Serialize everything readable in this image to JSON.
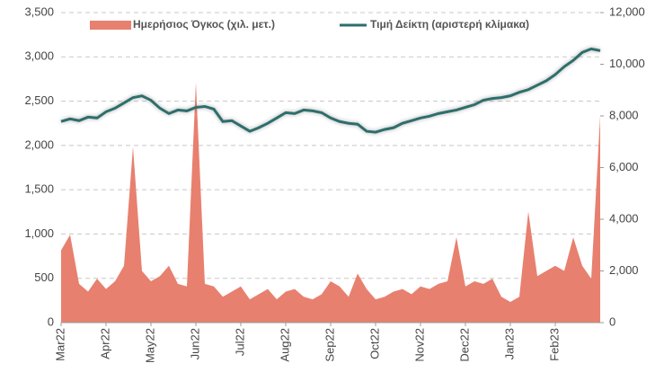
{
  "chart_data": {
    "type": "area+line",
    "categories": [
      "Mar22",
      null,
      null,
      null,
      null,
      "Apr22",
      null,
      null,
      null,
      null,
      "May22",
      null,
      null,
      null,
      null,
      "Jun22",
      null,
      null,
      null,
      null,
      "Jul22",
      null,
      null,
      null,
      null,
      "Aug22",
      null,
      null,
      null,
      null,
      "Sep22",
      null,
      null,
      null,
      null,
      "Oct22",
      null,
      null,
      null,
      null,
      "Nov22",
      null,
      null,
      null,
      null,
      "Dec22",
      null,
      null,
      null,
      null,
      "Jan23",
      null,
      null,
      null,
      null,
      "Feb23",
      null,
      null,
      null,
      null,
      null
    ],
    "series": [
      {
        "name": "Ημερήσιος Όγκος (χιλ. μετ.)",
        "type": "area",
        "axis": "y2",
        "color": "#e8806f",
        "values": [
          2800,
          3400,
          1500,
          1200,
          1700,
          1300,
          1600,
          2200,
          6800,
          2000,
          1600,
          1800,
          2200,
          1500,
          1400,
          9300,
          1500,
          1400,
          1000,
          1200,
          1400,
          900,
          1100,
          1300,
          900,
          1200,
          1300,
          1000,
          900,
          1100,
          1600,
          1400,
          1000,
          1900,
          1300,
          900,
          1000,
          1200,
          1300,
          1100,
          1400,
          1300,
          1500,
          1600,
          3300,
          1400,
          1600,
          1500,
          1700,
          1000,
          800,
          1000,
          4300,
          1800,
          2000,
          2200,
          2000,
          3300,
          2200,
          1700,
          8000
        ]
      },
      {
        "name": "Τιμή Δείκτη (αριστερή κλίμακα)",
        "type": "line",
        "axis": "y",
        "color": "#2e6e6c",
        "values": [
          2270,
          2300,
          2280,
          2320,
          2310,
          2380,
          2420,
          2480,
          2540,
          2560,
          2510,
          2420,
          2360,
          2400,
          2390,
          2430,
          2440,
          2410,
          2270,
          2280,
          2220,
          2160,
          2200,
          2250,
          2310,
          2370,
          2360,
          2400,
          2390,
          2370,
          2310,
          2270,
          2250,
          2240,
          2160,
          2150,
          2180,
          2200,
          2250,
          2280,
          2310,
          2330,
          2360,
          2380,
          2400,
          2430,
          2460,
          2510,
          2530,
          2540,
          2560,
          2600,
          2630,
          2680,
          2730,
          2800,
          2890,
          2960,
          3050,
          3090,
          3070
        ]
      }
    ],
    "ylim": [
      0,
      3500
    ],
    "yticks": [
      0,
      {
        "value": 500,
        "label": "500"
      },
      {
        "value": 1000,
        "label": "1,000"
      },
      {
        "value": 1500,
        "label": "1,500"
      },
      {
        "value": 2000,
        "label": "2,000"
      },
      {
        "value": 2500,
        "label": "2,500"
      },
      {
        "value": 3000,
        "label": "3,000"
      },
      {
        "value": 3500,
        "label": "3,500"
      }
    ],
    "y2lim": [
      0,
      12000
    ],
    "y2ticks": [
      0,
      {
        "value": 2000,
        "label": "2,000"
      },
      {
        "value": 4000,
        "label": "4,000"
      },
      {
        "value": 6000,
        "label": "6,000"
      },
      {
        "value": 8000,
        "label": "8,000"
      },
      {
        "value": 10000,
        "label": "10,000"
      },
      {
        "value": 12000,
        "label": "12,000"
      }
    ],
    "grid": true
  }
}
